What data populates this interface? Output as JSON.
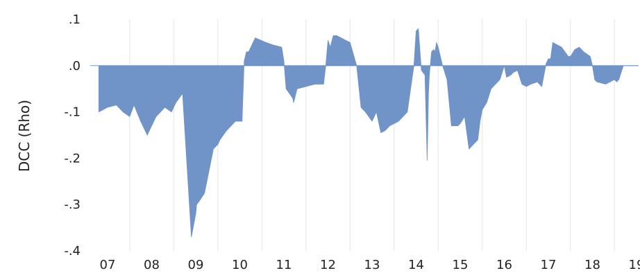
{
  "chart_data": {
    "type": "area",
    "title": "",
    "xlabel": "",
    "ylabel": "DCC (Rho)",
    "x_ticks": [
      "07",
      "08",
      "09",
      "10",
      "11",
      "12",
      "13",
      "14",
      "15",
      "16",
      "17",
      "18",
      "19"
    ],
    "y_ticks": [
      ".1",
      ".0",
      "-.1",
      "-.2",
      "-.3",
      "-.4"
    ],
    "ylim": [
      -0.4,
      0.1
    ],
    "xlim": [
      2006.8,
      2019.2
    ],
    "grid": "vertical",
    "colors": {
      "fill": "#7093c8",
      "grid": "#e3e3e3",
      "text": "#222222"
    },
    "series": [
      {
        "x": [
          2006.8,
          2007.0,
          2007.2,
          2007.35,
          2007.5,
          2007.6,
          2007.75,
          2007.9,
          2007.95,
          2008.1,
          2008.3,
          2008.45,
          2008.55,
          2008.7,
          2008.9,
          2009.0,
          2009.02,
          2009.1,
          2009.2,
          2009.4,
          2009.5,
          2009.55,
          2009.7,
          2009.9,
          2010.05,
          2010.1,
          2010.15,
          2010.2,
          2010.35,
          2010.6,
          2010.75,
          2010.95,
          2011.0,
          2011.05,
          2011.2,
          2011.22,
          2011.3,
          2011.5,
          2011.7,
          2011.9,
          2011.95,
          2012.0,
          2012.05,
          2012.12,
          2012.2,
          2012.3,
          2012.5,
          2012.65,
          2012.75,
          2012.8,
          2012.85,
          2013.0,
          2013.1,
          2013.2,
          2013.3,
          2013.4,
          2013.6,
          2013.8,
          2013.95,
          2014.0,
          2014.05,
          2014.12,
          2014.2,
          2014.25,
          2014.28,
          2014.3,
          2014.35,
          2014.4,
          2014.43,
          2014.46,
          2014.5,
          2014.55,
          2014.6,
          2014.7,
          2014.8,
          2014.95,
          2015.0,
          2015.1,
          2015.2,
          2015.3,
          2015.4,
          2015.45,
          2015.5,
          2015.6,
          2015.7,
          2015.8,
          2015.9,
          2016.0,
          2016.05,
          2016.15,
          2016.2,
          2016.3,
          2016.4,
          2016.5,
          2016.6,
          2016.75,
          2016.85,
          2016.95,
          2017.0,
          2017.05,
          2017.1,
          2017.3,
          2017.45,
          2017.5,
          2017.6,
          2017.7,
          2017.8,
          2017.95,
          2018.0,
          2018.05,
          2018.1,
          2018.3,
          2018.4,
          2018.5,
          2018.55,
          2018.6,
          2018.7,
          2018.8,
          2018.9,
          2018.95,
          2019.0,
          2019.05,
          2019.1,
          2019.2
        ],
        "values": [
          -0.1,
          -0.09,
          -0.085,
          -0.1,
          -0.11,
          -0.085,
          -0.12,
          -0.15,
          -0.14,
          -0.11,
          -0.09,
          -0.1,
          -0.08,
          -0.06,
          -0.37,
          -0.32,
          -0.3,
          -0.29,
          -0.275,
          -0.18,
          -0.17,
          -0.16,
          -0.14,
          -0.12,
          -0.12,
          0.01,
          0.03,
          0.03,
          0.06,
          0.05,
          0.045,
          0.04,
          0.01,
          -0.05,
          -0.07,
          -0.08,
          -0.05,
          -0.045,
          -0.04,
          -0.04,
          0.0,
          0.055,
          0.04,
          0.065,
          0.065,
          0.06,
          0.05,
          0.0,
          -0.09,
          -0.095,
          -0.1,
          -0.12,
          -0.1,
          -0.145,
          -0.14,
          -0.13,
          -0.12,
          -0.1,
          0.0,
          0.075,
          0.08,
          -0.01,
          -0.02,
          -0.205,
          -0.06,
          -0.02,
          0.03,
          0.035,
          0.03,
          0.05,
          0.04,
          0.02,
          0.0,
          -0.03,
          -0.13,
          -0.13,
          -0.125,
          -0.11,
          -0.18,
          -0.17,
          -0.16,
          -0.12,
          -0.095,
          -0.08,
          -0.05,
          -0.04,
          -0.03,
          0.0,
          -0.025,
          -0.02,
          -0.015,
          -0.01,
          -0.04,
          -0.045,
          -0.04,
          -0.035,
          -0.045,
          0.005,
          0.015,
          0.015,
          0.05,
          0.04,
          0.02,
          0.02,
          0.035,
          0.04,
          0.03,
          0.02,
          0.0,
          -0.03,
          -0.035,
          -0.04,
          -0.035,
          -0.03,
          -0.035,
          -0.03,
          0.0,
          0.0,
          0.0,
          0.0,
          0.0,
          0.0,
          0.0,
          0.0
        ]
      }
    ]
  }
}
